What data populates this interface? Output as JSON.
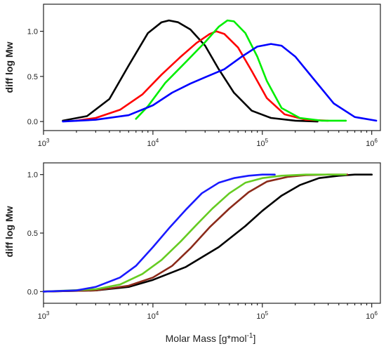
{
  "chart_data": [
    {
      "type": "line",
      "title": "",
      "ylabel": "diff log Mw",
      "xlabel": "",
      "xscale": "log",
      "xlim": [
        1000,
        1200000
      ],
      "ylim": [
        -0.1,
        1.3
      ],
      "xticks": [
        {
          "base": "10",
          "exp": "3"
        },
        {
          "base": "10",
          "exp": "4"
        },
        {
          "base": "10",
          "exp": "5"
        },
        {
          "base": "10",
          "exp": "6"
        }
      ],
      "yticks": [
        "0.0",
        "0.5",
        "1.0"
      ],
      "ytick_values": [
        0,
        0.5,
        1.0
      ],
      "grid": false,
      "series": [
        {
          "color": "#000000",
          "x": [
            1500,
            2500,
            4000,
            6000,
            9000,
            12000,
            14000,
            17000,
            22000,
            30000,
            40000,
            55000,
            80000,
            120000,
            200000,
            320000
          ],
          "y": [
            0.01,
            0.06,
            0.25,
            0.62,
            0.98,
            1.1,
            1.12,
            1.1,
            1.02,
            0.84,
            0.58,
            0.32,
            0.12,
            0.04,
            0.01,
            0.0
          ]
        },
        {
          "color": "#ff0000",
          "x": [
            2000,
            3000,
            5000,
            8000,
            12000,
            18000,
            25000,
            33000,
            38000,
            45000,
            60000,
            80000,
            110000,
            160000,
            250000,
            400000
          ],
          "y": [
            0.01,
            0.04,
            0.13,
            0.3,
            0.52,
            0.72,
            0.87,
            0.97,
            1.0,
            0.97,
            0.82,
            0.56,
            0.26,
            0.08,
            0.02,
            0.01
          ]
        },
        {
          "color": "#00ee00",
          "x": [
            7000,
            9000,
            13000,
            20000,
            30000,
            40000,
            48000,
            55000,
            70000,
            90000,
            110000,
            150000,
            220000,
            350000,
            580000
          ],
          "y": [
            0.03,
            0.17,
            0.43,
            0.66,
            0.88,
            1.05,
            1.12,
            1.11,
            0.98,
            0.72,
            0.45,
            0.15,
            0.04,
            0.01,
            0.01
          ]
        },
        {
          "color": "#0000ff",
          "x": [
            1500,
            3000,
            6000,
            10000,
            15000,
            22000,
            30000,
            45000,
            65000,
            90000,
            120000,
            150000,
            200000,
            300000,
            450000,
            700000,
            1100000
          ],
          "y": [
            0.0,
            0.02,
            0.07,
            0.18,
            0.32,
            0.42,
            0.49,
            0.58,
            0.72,
            0.83,
            0.86,
            0.84,
            0.72,
            0.46,
            0.2,
            0.05,
            0.01
          ]
        }
      ]
    },
    {
      "type": "line",
      "title": "",
      "ylabel": "diff log Mw",
      "xlabel": "Molar Mass [g*mol",
      "xlabel_sup": "-1",
      "xlabel_end": "]",
      "xscale": "log",
      "xlim": [
        1000,
        1200000
      ],
      "ylim": [
        -0.1,
        1.1
      ],
      "xticks": [
        {
          "base": "10",
          "exp": "3"
        },
        {
          "base": "10",
          "exp": "4"
        },
        {
          "base": "10",
          "exp": "5"
        },
        {
          "base": "10",
          "exp": "6"
        }
      ],
      "yticks": [
        "0.0",
        "0.5",
        "1.0"
      ],
      "ytick_values": [
        0,
        0.5,
        1.0
      ],
      "grid": false,
      "series": [
        {
          "color": "#000000",
          "x": [
            1000,
            3000,
            6000,
            10000,
            20000,
            40000,
            70000,
            100000,
            150000,
            220000,
            330000,
            500000,
            700000,
            1000000
          ],
          "y": [
            0.0,
            0.01,
            0.04,
            0.1,
            0.21,
            0.38,
            0.56,
            0.69,
            0.82,
            0.91,
            0.97,
            0.99,
            1.0,
            1.0
          ]
        },
        {
          "color": "#8b2a1a",
          "x": [
            1000,
            3000,
            6000,
            10000,
            15000,
            22000,
            33000,
            50000,
            75000,
            110000,
            170000,
            250000,
            400000,
            600000
          ],
          "y": [
            0.0,
            0.01,
            0.05,
            0.12,
            0.22,
            0.37,
            0.55,
            0.71,
            0.85,
            0.94,
            0.98,
            0.995,
            1.0,
            1.0
          ]
        },
        {
          "color": "#66cc22",
          "x": [
            1000,
            3000,
            5000,
            8000,
            12000,
            18000,
            25000,
            35000,
            50000,
            70000,
            100000,
            150000,
            250000,
            400000,
            580000
          ],
          "y": [
            0.0,
            0.02,
            0.06,
            0.15,
            0.27,
            0.43,
            0.57,
            0.71,
            0.84,
            0.93,
            0.97,
            0.99,
            1.0,
            1.0,
            1.0
          ]
        },
        {
          "color": "#1a1aff",
          "x": [
            1000,
            2000,
            3000,
            5000,
            7000,
            10000,
            14000,
            20000,
            28000,
            40000,
            55000,
            75000,
            100000,
            130000
          ],
          "y": [
            0.0,
            0.01,
            0.04,
            0.12,
            0.22,
            0.38,
            0.54,
            0.7,
            0.84,
            0.93,
            0.97,
            0.99,
            1.0,
            1.0
          ]
        }
      ]
    }
  ]
}
